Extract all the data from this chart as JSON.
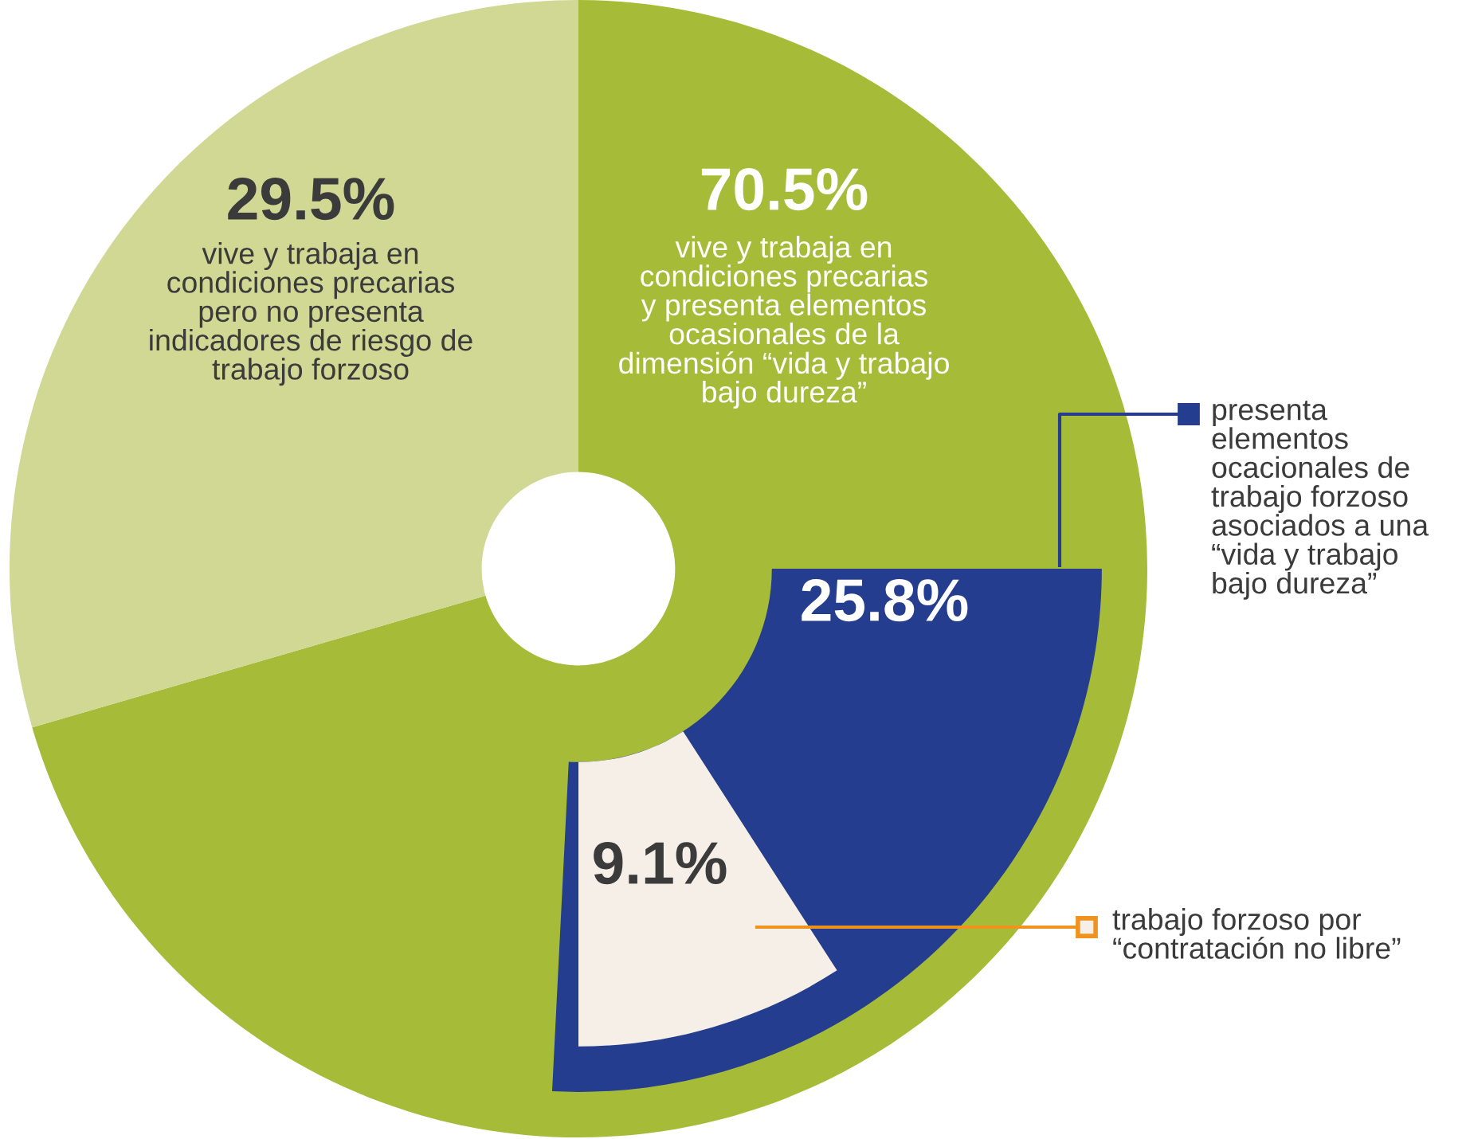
{
  "chart_data": {
    "type": "pie",
    "categories": [
      "vive y trabaja en\ncondiciones precarias\ny presenta elementos\nocasionales de la\ndimensión “vida y trabajo\nbajo dureza”",
      "vive y trabaja en\ncondiciones precarias\npero no presenta\nindicadores de riesgo de\ntrabajo forzoso",
      "presenta\nelementos\nocacionales de\ntrabajo forzoso\nasociados a una\n“vida y trabajo\nbajo dureza”",
      "trabajo forzoso por\n“contratación no libre”"
    ],
    "legend": "right",
    "series": [
      {
        "values": [
          70.5,
          29.5,
          null,
          null
        ],
        "colors": [
          "#a6bc38",
          "#d0d894",
          null,
          null
        ],
        "value_labels": [
          "70.5%",
          "29.5%",
          null,
          null
        ]
      },
      {
        "values": [
          null,
          null,
          25.8,
          null
        ],
        "colors": [
          null,
          null,
          "#243d8e",
          null
        ],
        "value_labels": [
          null,
          null,
          "25.8%",
          null
        ]
      },
      {
        "values": [
          null,
          null,
          null,
          9.1
        ],
        "colors": [
          null,
          null,
          null,
          "#f6efe7"
        ],
        "value_labels": [
          null,
          null,
          null,
          "9.1%"
        ]
      }
    ]
  }
}
